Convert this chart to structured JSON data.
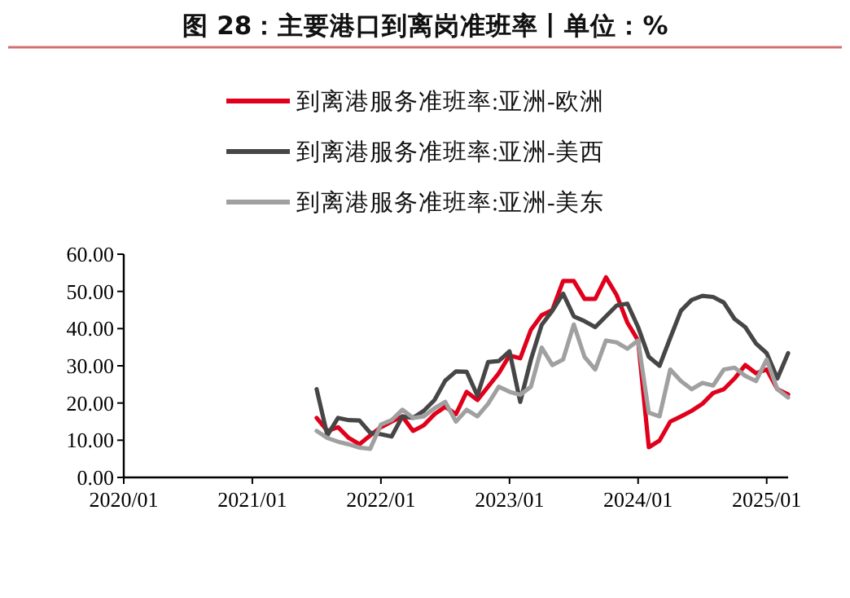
{
  "chart_data": {
    "type": "line",
    "title": "图 28：主要港口到离岗准班率丨单位：%",
    "x": [
      "2021-07",
      "2021-08",
      "2021-09",
      "2021-10",
      "2021-11",
      "2021-12",
      "2022-01",
      "2022-02",
      "2022-03",
      "2022-04",
      "2022-05",
      "2022-06",
      "2022-07",
      "2022-08",
      "2022-09",
      "2022-10",
      "2022-11",
      "2022-12",
      "2023-01",
      "2023-02",
      "2023-03",
      "2023-04",
      "2023-05",
      "2023-06",
      "2023-07",
      "2023-08",
      "2023-09",
      "2023-10",
      "2023-11",
      "2023-12",
      "2024-01",
      "2024-02",
      "2024-03",
      "2024-04",
      "2024-05",
      "2024-06",
      "2024-07",
      "2024-08",
      "2024-09",
      "2024-10",
      "2024-11",
      "2024-12",
      "2025-01",
      "2025-02",
      "2025-03"
    ],
    "series": [
      {
        "name": "到离港服务准班率:亚洲-欧洲",
        "color": "#e0001b",
        "values": [
          16,
          12.5,
          13.5,
          10.6,
          8.9,
          11.3,
          13.5,
          15,
          16.4,
          12.5,
          14,
          17,
          19,
          17,
          23,
          20.8,
          24.4,
          28,
          32.8,
          32,
          39.7,
          43.6,
          45,
          52.8,
          52.8,
          48,
          48,
          53.8,
          49,
          41.6,
          36.8,
          8.1,
          9.9,
          15,
          16.4,
          17.9,
          19.8,
          22.7,
          23.7,
          26.6,
          30.2,
          28,
          29,
          23.7,
          22.3
        ]
      },
      {
        "name": "到离港服务准班率:亚洲-美西",
        "color": "#464646",
        "values": [
          23.7,
          11.3,
          16,
          15.4,
          15.3,
          12,
          11.6,
          11,
          16.4,
          16,
          17.9,
          20.8,
          26,
          28.5,
          28.4,
          22,
          31,
          31.3,
          33.9,
          20.3,
          31.7,
          41,
          44.8,
          49.4,
          43.3,
          42,
          40.4,
          43.3,
          46.2,
          46.7,
          40.4,
          32.4,
          30,
          37.5,
          44.8,
          47.7,
          48.8,
          48.5,
          47,
          42.6,
          40.4,
          36,
          33.4,
          26.6,
          33.4
        ]
      },
      {
        "name": "到离港服务准班率:亚洲-美东",
        "color": "#a0a0a0",
        "values": [
          12.5,
          10.6,
          9.6,
          8.9,
          8,
          7.7,
          14.2,
          15.4,
          18.2,
          16,
          16.4,
          18.6,
          20.3,
          15,
          18.2,
          16.4,
          19.8,
          24.4,
          23,
          22.2,
          24.4,
          34.9,
          30.2,
          31.7,
          41.1,
          32.4,
          29,
          36.8,
          36.3,
          34.6,
          36.8,
          17.4,
          16.4,
          29,
          25.9,
          23.7,
          25.4,
          24.7,
          29,
          29.5,
          27.3,
          25.9,
          31.7,
          23.7,
          21.5
        ]
      }
    ],
    "xlim": [
      "2020-01",
      "2025-03"
    ],
    "xticks": [
      {
        "value": "2020-01",
        "label": "2020/01"
      },
      {
        "value": "2021-01",
        "label": "2021/01"
      },
      {
        "value": "2022-01",
        "label": "2022/01"
      },
      {
        "value": "2023-01",
        "label": "2023/01"
      },
      {
        "value": "2024-01",
        "label": "2024/01"
      },
      {
        "value": "2025-01",
        "label": "2025/01"
      }
    ],
    "ylim": [
      0,
      60
    ],
    "yticks": [
      {
        "value": 0,
        "label": "0.00"
      },
      {
        "value": 10,
        "label": "10.00"
      },
      {
        "value": 20,
        "label": "20.00"
      },
      {
        "value": 30,
        "label": "30.00"
      },
      {
        "value": 40,
        "label": "40.00"
      },
      {
        "value": 50,
        "label": "50.00"
      },
      {
        "value": 60,
        "label": "60.00"
      }
    ],
    "grid": false,
    "legend": "top",
    "marker": "none",
    "line_style": "solid"
  }
}
